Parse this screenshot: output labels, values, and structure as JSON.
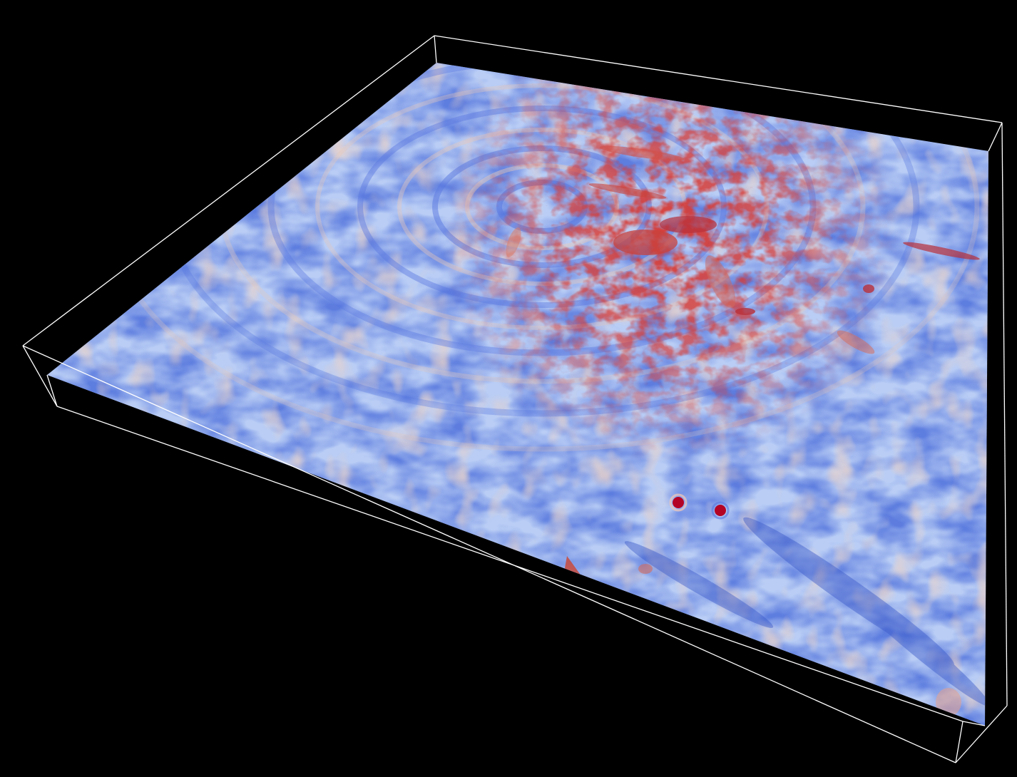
{
  "scene": {
    "background_color": "#000000",
    "outline_color": "#ffffff",
    "colormap": {
      "name": "coolwarm",
      "low_color": "#3b4cc0",
      "mid_color": "#dddddd",
      "high_color": "#b40426"
    }
  }
}
